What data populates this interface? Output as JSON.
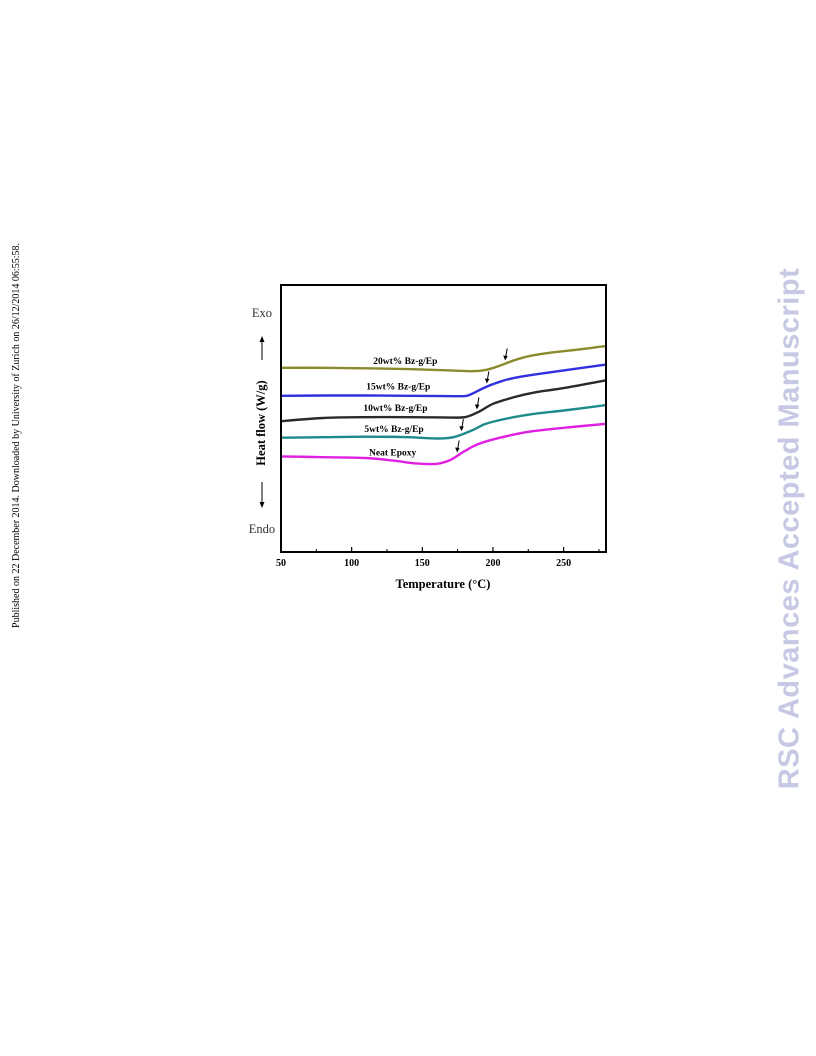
{
  "page": {
    "side_note": "Published on 22 December 2014. Downloaded by University of Zurich on 26/12/2014 06:55:58.",
    "watermark": "RSC Advances Accepted Manuscript"
  },
  "chart_data": {
    "type": "line",
    "title": "",
    "xlabel": "Temperature (°C)",
    "ylabel": "Heat flow (W/g)",
    "xlim": [
      50,
      280
    ],
    "ylim": [
      0,
      10
    ],
    "xticks": [
      50,
      100,
      150,
      200,
      250
    ],
    "top_label": "Exo",
    "bottom_label": "Endo",
    "grid": false,
    "legend": "none (series labelled directly on curves)",
    "series": [
      {
        "name": "20wt% Bz-g/Ep",
        "color": "#8a8a2e",
        "arrow_x": 209,
        "x": [
          50,
          80,
          110,
          140,
          170,
          185,
          195,
          205,
          215,
          225,
          240,
          260,
          280
        ],
        "y": [
          6.9,
          6.9,
          6.88,
          6.85,
          6.8,
          6.77,
          6.82,
          6.98,
          7.18,
          7.33,
          7.46,
          7.58,
          7.72
        ]
      },
      {
        "name": "15wt% Bz-g/Ep",
        "color": "#3030e0",
        "arrow_x": 196,
        "x": [
          50,
          80,
          110,
          140,
          165,
          180,
          185,
          195,
          205,
          215,
          230,
          250,
          280
        ],
        "y": [
          5.85,
          5.86,
          5.86,
          5.85,
          5.84,
          5.84,
          5.92,
          6.18,
          6.38,
          6.52,
          6.65,
          6.8,
          7.02
        ]
      },
      {
        "name": "10wt% Bz-g/Ep",
        "color": "#2a2a2a",
        "arrow_x": 189,
        "x": [
          50,
          80,
          110,
          140,
          165,
          180,
          190,
          200,
          215,
          230,
          250,
          280
        ],
        "y": [
          4.9,
          5.02,
          5.05,
          5.05,
          5.04,
          5.05,
          5.25,
          5.55,
          5.8,
          5.98,
          6.14,
          6.43
        ]
      },
      {
        "name": "5wt% Bz-g/Ep",
        "color": "#1f8a8a",
        "arrow_x": 178,
        "x": [
          50,
          80,
          110,
          140,
          160,
          172,
          185,
          195,
          210,
          230,
          250,
          280
        ],
        "y": [
          4.28,
          4.3,
          4.32,
          4.3,
          4.25,
          4.3,
          4.55,
          4.8,
          5.0,
          5.18,
          5.3,
          5.5
        ]
      },
      {
        "name": "Neat Epoxy",
        "color": "#e020e0",
        "arrow_x": 175,
        "x": [
          50,
          80,
          110,
          130,
          145,
          160,
          170,
          180,
          190,
          205,
          225,
          250,
          280
        ],
        "y": [
          3.58,
          3.55,
          3.52,
          3.42,
          3.32,
          3.3,
          3.45,
          3.78,
          4.05,
          4.28,
          4.5,
          4.65,
          4.8
        ]
      }
    ]
  }
}
